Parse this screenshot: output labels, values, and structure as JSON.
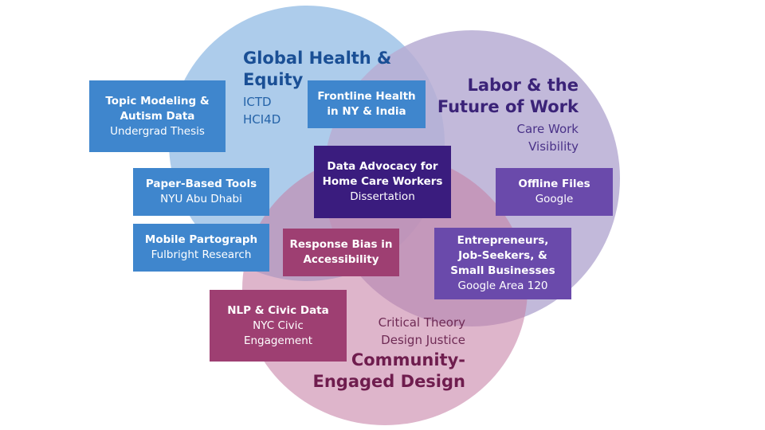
{
  "circles": {
    "health": {
      "title_lines": [
        "Global Health &",
        "Equity"
      ],
      "sub_lines": [
        "ICTD",
        "HCI4D"
      ],
      "color": "#a9c9ea"
    },
    "labor": {
      "title_lines": [
        "Labor & the",
        "Future of Work"
      ],
      "sub_lines": [
        "Care Work",
        "Visibility"
      ],
      "color": "#b7add3"
    },
    "community": {
      "title_lines": [
        "Community-",
        "Engaged Design"
      ],
      "sub_lines": [
        "Critical Theory",
        "Design Justice"
      ],
      "color": "#c67fa6"
    }
  },
  "boxes": {
    "topic": {
      "title_lines": [
        "Topic Modeling &",
        "Autism Data"
      ],
      "sub_lines": [
        "Undergrad Thesis"
      ],
      "color": "#3f86cd"
    },
    "frontline": {
      "title_lines": [
        "Frontline Health",
        "in NY & India"
      ],
      "sub_lines": [],
      "color": "#3f86cd"
    },
    "paper": {
      "title_lines": [
        "Paper-Based Tools"
      ],
      "sub_lines": [
        "NYU Abu Dhabi"
      ],
      "color": "#3f86cd"
    },
    "mobile": {
      "title_lines": [
        "Mobile Partograph"
      ],
      "sub_lines": [
        "Fulbright Research"
      ],
      "color": "#3f86cd"
    },
    "data_advocacy": {
      "title_lines": [
        "Data Advocacy for",
        "Home Care Workers"
      ],
      "sub_lines": [
        "Dissertation"
      ],
      "color": "#3a1c7e"
    },
    "offline": {
      "title_lines": [
        "Offline Files"
      ],
      "sub_lines": [
        "Google"
      ],
      "color": "#6a4aab"
    },
    "response": {
      "title_lines": [
        "Response Bias in",
        "Accessibility"
      ],
      "sub_lines": [],
      "color": "#9e3f72"
    },
    "entrepreneurs": {
      "title_lines": [
        "Entrepreneurs,",
        "Job-Seekers, &",
        "Small Businesses"
      ],
      "sub_lines": [
        "Google Area 120"
      ],
      "color": "#6a4aab"
    },
    "nlp": {
      "title_lines": [
        "NLP & Civic Data"
      ],
      "sub_lines": [
        "NYC Civic",
        "Engagement"
      ],
      "color": "#9e3f72"
    }
  }
}
